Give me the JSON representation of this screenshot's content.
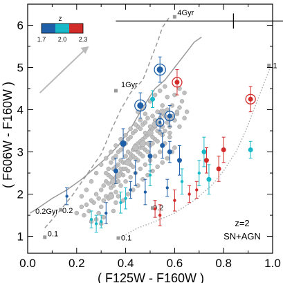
{
  "chart_data": {
    "type": "scatter",
    "xlabel": "( F125W - F160W )",
    "ylabel": "( F606W - F160W )",
    "xlim": [
      0.0,
      1.0
    ],
    "ylim": [
      0.6,
      6.5
    ],
    "x_ticks": [
      "0.0",
      "0.2",
      "0.4",
      "0.6",
      "0.8",
      "1.0"
    ],
    "x_tick_values": [
      0.0,
      0.2,
      0.4,
      0.6,
      0.8,
      1.0
    ],
    "y_ticks": [
      "1",
      "2",
      "3",
      "4",
      "5",
      "6"
    ],
    "y_tick_values": [
      1,
      2,
      3,
      4,
      5,
      6
    ],
    "annotation": [
      "z=2",
      "SN+AGN"
    ],
    "colorbar": {
      "title": "z",
      "tick_labels": [
        "1.7",
        "2.0",
        "2.3"
      ],
      "tick_values": [
        1.7,
        2.0,
        2.3
      ],
      "colors": [
        "#1f5fa8",
        "#17b8c8",
        "#d32a2a"
      ]
    },
    "colors": {
      "grey_points": "#c0c0c0",
      "track_dark": "#999999",
      "track_light": "#aaaaaa",
      "arrow": "#bbbbbb",
      "marker_square": "#999999"
    },
    "tracks": [
      {
        "style": "solid",
        "points": [
          [
            0.01,
            1.55
          ],
          [
            0.05,
            1.7
          ],
          [
            0.1,
            1.9
          ],
          [
            0.16,
            2.1
          ],
          [
            0.22,
            2.35
          ],
          [
            0.27,
            2.6
          ],
          [
            0.32,
            2.85
          ],
          [
            0.37,
            3.15
          ],
          [
            0.42,
            3.55
          ],
          [
            0.47,
            4.05
          ],
          [
            0.52,
            4.5
          ],
          [
            0.56,
            4.7
          ],
          [
            0.6,
            5.0
          ],
          [
            0.64,
            5.3
          ],
          [
            0.68,
            5.6
          ],
          [
            0.71,
            5.72
          ]
        ],
        "labels": [
          {
            "text": "0.2Gyr",
            "x": 0.02,
            "y": 1.6
          },
          {
            "text": "4Gyr",
            "x": 0.6,
            "y": 6.3
          }
        ]
      },
      {
        "style": "dashed",
        "points": [
          [
            0.07,
            1.2
          ],
          [
            0.13,
            1.6
          ],
          [
            0.18,
            1.95
          ],
          [
            0.24,
            2.45
          ],
          [
            0.3,
            2.95
          ],
          [
            0.34,
            3.5
          ],
          [
            0.38,
            4.0
          ],
          [
            0.42,
            4.4
          ],
          [
            0.47,
            4.7
          ],
          [
            0.5,
            5.15
          ],
          [
            0.53,
            5.6
          ],
          [
            0.55,
            5.95
          ],
          [
            0.58,
            6.2
          ]
        ],
        "labels": [
          {
            "text": "0.2",
            "x": 0.13,
            "y": 1.62
          },
          {
            "text": "1Gyr",
            "x": 0.37,
            "y": 4.6
          }
        ]
      },
      {
        "style": "dotted",
        "points": [
          [
            0.37,
            0.95
          ],
          [
            0.45,
            1.2
          ],
          [
            0.52,
            1.35
          ],
          [
            0.6,
            1.55
          ],
          [
            0.68,
            1.85
          ],
          [
            0.75,
            2.2
          ],
          [
            0.8,
            2.55
          ],
          [
            0.85,
            3.0
          ],
          [
            0.89,
            3.5
          ],
          [
            0.93,
            4.1
          ],
          [
            0.96,
            4.55
          ],
          [
            0.99,
            5.0
          ]
        ],
        "labels": [
          {
            "text": "0.1",
            "x": 0.37,
            "y": 0.97
          },
          {
            "text": "0.2",
            "x": 0.5,
            "y": 1.68
          },
          {
            "text": "1",
            "x": 0.99,
            "y": 5.05
          }
        ]
      }
    ],
    "track_extra_label": {
      "text": "0.1",
      "x": 0.07,
      "y": 1.07
    },
    "square_markers": [
      [
        0.07,
        0.98
      ],
      [
        0.135,
        1.63
      ],
      [
        0.37,
        0.96
      ],
      [
        0.51,
        1.67
      ],
      [
        0.36,
        4.45
      ],
      [
        0.6,
        6.2
      ],
      [
        0.985,
        5.05
      ]
    ],
    "error_bar_example": {
      "x": 0.84,
      "y": 6.1,
      "xerr": 0.12,
      "yerr": 0.18
    },
    "grey_points": [
      [
        0.3,
        2.1
      ],
      [
        0.32,
        2.3
      ],
      [
        0.33,
        2.45
      ],
      [
        0.35,
        2.6
      ],
      [
        0.36,
        2.55
      ],
      [
        0.37,
        2.7
      ],
      [
        0.38,
        2.8
      ],
      [
        0.39,
        2.75
      ],
      [
        0.4,
        2.9
      ],
      [
        0.41,
        3.0
      ],
      [
        0.42,
        2.95
      ],
      [
        0.43,
        3.05
      ],
      [
        0.44,
        3.15
      ],
      [
        0.45,
        3.2
      ],
      [
        0.46,
        3.1
      ],
      [
        0.47,
        3.3
      ],
      [
        0.48,
        3.35
      ],
      [
        0.49,
        3.4
      ],
      [
        0.5,
        3.5
      ],
      [
        0.51,
        3.55
      ],
      [
        0.52,
        3.6
      ],
      [
        0.53,
        3.7
      ],
      [
        0.54,
        3.8
      ],
      [
        0.55,
        3.9
      ],
      [
        0.56,
        3.85
      ],
      [
        0.57,
        4.0
      ],
      [
        0.28,
        2.0
      ],
      [
        0.29,
        1.9
      ],
      [
        0.31,
        2.2
      ],
      [
        0.32,
        1.95
      ],
      [
        0.33,
        2.25
      ],
      [
        0.34,
        2.15
      ],
      [
        0.35,
        2.35
      ],
      [
        0.36,
        2.4
      ],
      [
        0.37,
        2.3
      ],
      [
        0.38,
        2.5
      ],
      [
        0.39,
        2.45
      ],
      [
        0.4,
        2.6
      ],
      [
        0.41,
        2.55
      ],
      [
        0.42,
        2.7
      ],
      [
        0.43,
        2.65
      ],
      [
        0.44,
        2.85
      ],
      [
        0.45,
        2.8
      ],
      [
        0.46,
        2.95
      ],
      [
        0.47,
        2.9
      ],
      [
        0.48,
        3.05
      ],
      [
        0.49,
        3.0
      ],
      [
        0.5,
        3.15
      ],
      [
        0.51,
        3.2
      ],
      [
        0.52,
        3.3
      ],
      [
        0.53,
        3.25
      ],
      [
        0.54,
        3.45
      ],
      [
        0.55,
        3.4
      ],
      [
        0.33,
        2.6
      ],
      [
        0.34,
        2.75
      ],
      [
        0.35,
        2.85
      ],
      [
        0.36,
        2.9
      ],
      [
        0.37,
        3.0
      ],
      [
        0.38,
        3.05
      ],
      [
        0.39,
        3.15
      ],
      [
        0.4,
        3.2
      ],
      [
        0.41,
        3.3
      ],
      [
        0.42,
        3.35
      ],
      [
        0.43,
        3.45
      ],
      [
        0.44,
        3.5
      ],
      [
        0.45,
        3.6
      ],
      [
        0.46,
        3.55
      ],
      [
        0.47,
        3.65
      ],
      [
        0.48,
        3.7
      ],
      [
        0.49,
        3.8
      ],
      [
        0.27,
        1.8
      ],
      [
        0.3,
        1.7
      ],
      [
        0.31,
        1.85
      ],
      [
        0.33,
        1.9
      ],
      [
        0.34,
        2.0
      ],
      [
        0.36,
        2.05
      ],
      [
        0.38,
        2.2
      ],
      [
        0.4,
        2.3
      ],
      [
        0.42,
        2.4
      ],
      [
        0.44,
        2.5
      ],
      [
        0.46,
        2.6
      ],
      [
        0.48,
        2.7
      ],
      [
        0.5,
        2.8
      ],
      [
        0.52,
        2.9
      ],
      [
        0.54,
        3.0
      ],
      [
        0.56,
        3.2
      ],
      [
        0.58,
        3.35
      ],
      [
        0.22,
        1.7
      ],
      [
        0.24,
        1.75
      ],
      [
        0.25,
        1.6
      ],
      [
        0.26,
        1.85
      ],
      [
        0.2,
        1.55
      ],
      [
        0.23,
        1.5
      ],
      [
        0.29,
        1.55
      ],
      [
        0.31,
        1.45
      ],
      [
        0.28,
        1.4
      ],
      [
        0.26,
        1.35
      ],
      [
        0.3,
        1.3
      ],
      [
        0.35,
        1.6
      ],
      [
        0.36,
        1.8
      ],
      [
        0.37,
        1.95
      ],
      [
        0.39,
        1.85
      ],
      [
        0.41,
        2.0
      ],
      [
        0.43,
        2.1
      ],
      [
        0.45,
        2.2
      ],
      [
        0.47,
        2.35
      ],
      [
        0.49,
        2.45
      ],
      [
        0.51,
        2.55
      ],
      [
        0.53,
        2.65
      ],
      [
        0.55,
        2.75
      ],
      [
        0.57,
        2.85
      ],
      [
        0.59,
        3.0
      ],
      [
        0.6,
        3.1
      ],
      [
        0.58,
        3.6
      ],
      [
        0.6,
        3.75
      ],
      [
        0.61,
        3.9
      ],
      [
        0.59,
        4.1
      ],
      [
        0.57,
        4.3
      ],
      [
        0.55,
        4.1
      ],
      [
        0.53,
        3.95
      ],
      [
        0.51,
        3.85
      ],
      [
        0.45,
        3.95
      ],
      [
        0.47,
        4.05
      ],
      [
        0.5,
        4.2
      ],
      [
        0.52,
        4.35
      ],
      [
        0.54,
        4.45
      ],
      [
        0.56,
        4.55
      ],
      [
        0.48,
        3.9
      ],
      [
        0.46,
        3.75
      ],
      [
        0.44,
        3.65
      ],
      [
        0.42,
        3.55
      ],
      [
        0.4,
        3.4
      ],
      [
        0.38,
        3.3
      ],
      [
        0.36,
        3.15
      ],
      [
        0.34,
        3.0
      ],
      [
        0.32,
        2.85
      ],
      [
        0.3,
        2.7
      ],
      [
        0.28,
        2.5
      ],
      [
        0.26,
        2.3
      ],
      [
        0.24,
        2.1
      ],
      [
        0.22,
        1.95
      ],
      [
        0.35,
        2.2
      ],
      [
        0.37,
        2.45
      ],
      [
        0.39,
        2.6
      ],
      [
        0.41,
        2.8
      ],
      [
        0.43,
        2.9
      ],
      [
        0.45,
        3.0
      ],
      [
        0.47,
        3.1
      ],
      [
        0.49,
        3.2
      ],
      [
        0.51,
        3.35
      ],
      [
        0.53,
        3.5
      ],
      [
        0.55,
        3.6
      ],
      [
        0.57,
        3.7
      ],
      [
        0.59,
        3.85
      ],
      [
        0.61,
        3.95
      ],
      [
        0.32,
        2.5
      ],
      [
        0.34,
        2.4
      ],
      [
        0.36,
        2.65
      ],
      [
        0.38,
        2.6
      ],
      [
        0.4,
        2.75
      ],
      [
        0.42,
        2.85
      ],
      [
        0.44,
        3.05
      ],
      [
        0.46,
        3.25
      ],
      [
        0.48,
        3.45
      ],
      [
        0.5,
        3.6
      ],
      [
        0.52,
        3.75
      ],
      [
        0.54,
        3.65
      ],
      [
        0.56,
        3.5
      ],
      [
        0.58,
        3.45
      ],
      [
        0.62,
        4.05
      ],
      [
        0.63,
        4.2
      ],
      [
        0.6,
        4.35
      ],
      [
        0.62,
        4.5
      ],
      [
        0.64,
        4.4
      ],
      [
        0.62,
        3.6
      ],
      [
        0.64,
        3.8
      ],
      [
        0.65,
        3.95
      ]
    ],
    "grey_points_large": [
      [
        0.44,
        3.1
      ],
      [
        0.5,
        3.45
      ],
      [
        0.55,
        3.95
      ],
      [
        0.41,
        2.75
      ],
      [
        0.37,
        2.45
      ],
      [
        0.35,
        2.3
      ],
      [
        0.47,
        3.2
      ],
      [
        0.52,
        3.65
      ],
      [
        0.58,
        3.8
      ],
      [
        0.34,
        1.95
      ]
    ],
    "colored_points": [
      {
        "x": 0.26,
        "y": 1.4,
        "z": 2.0,
        "yerr": 0.2,
        "ring": false,
        "size": "s"
      },
      {
        "x": 0.3,
        "y": 1.35,
        "z": 2.0,
        "yerr": 0.15,
        "ring": false,
        "size": "s"
      },
      {
        "x": 0.38,
        "y": 1.8,
        "z": 2.0,
        "yerr": 0.25,
        "ring": false,
        "size": "s"
      },
      {
        "x": 0.42,
        "y": 2.1,
        "z": 1.7,
        "yerr": 0.2,
        "ring": false,
        "size": "s"
      },
      {
        "x": 0.48,
        "y": 2.05,
        "z": 1.7,
        "yerr": 0.3,
        "ring": false,
        "size": "s"
      },
      {
        "x": 0.52,
        "y": 1.65,
        "z": 2.3,
        "yerr": 0.2,
        "ring": false,
        "size": "s"
      },
      {
        "x": 0.54,
        "y": 1.5,
        "z": 2.3,
        "yerr": 0.25,
        "ring": false,
        "size": "s"
      },
      {
        "x": 0.57,
        "y": 2.15,
        "z": 1.7,
        "yerr": 0.2,
        "ring": false,
        "size": "s"
      },
      {
        "x": 0.6,
        "y": 1.85,
        "z": 2.3,
        "yerr": 0.25,
        "ring": false,
        "size": "s"
      },
      {
        "x": 0.63,
        "y": 2.3,
        "z": 2.0,
        "yerr": 0.3,
        "ring": false,
        "size": "s"
      },
      {
        "x": 0.66,
        "y": 2.0,
        "z": 2.3,
        "yerr": 0.2,
        "ring": false,
        "size": "s"
      },
      {
        "x": 0.69,
        "y": 2.1,
        "z": 2.3,
        "yerr": 0.2,
        "ring": false,
        "size": "s"
      },
      {
        "x": 0.7,
        "y": 2.5,
        "z": 2.0,
        "yerr": 0.3,
        "ring": false,
        "size": "s"
      },
      {
        "x": 0.72,
        "y": 3.0,
        "z": 2.0,
        "yerr": 0.35,
        "ring": false,
        "size": "m"
      },
      {
        "x": 0.74,
        "y": 2.35,
        "z": 2.0,
        "yerr": 0.35,
        "ring": false,
        "size": "m"
      },
      {
        "x": 0.73,
        "y": 2.8,
        "z": 2.3,
        "yerr": 0.3,
        "ring": false,
        "size": "m"
      },
      {
        "x": 0.78,
        "y": 2.6,
        "z": 2.3,
        "yerr": 0.3,
        "ring": false,
        "size": "m"
      },
      {
        "x": 0.8,
        "y": 3.05,
        "z": 2.3,
        "yerr": 0.3,
        "ring": false,
        "size": "m"
      },
      {
        "x": 0.91,
        "y": 3.05,
        "z": 2.0,
        "yerr": 0.2,
        "ring": false,
        "size": "m"
      },
      {
        "x": 0.16,
        "y": 1.95,
        "z": 1.7,
        "yerr": 0.2,
        "ring": false,
        "size": "s"
      },
      {
        "x": 0.28,
        "y": 1.3,
        "z": 2.0,
        "yerr": 0.2,
        "ring": false,
        "size": "s"
      },
      {
        "x": 0.32,
        "y": 1.55,
        "z": 1.7,
        "yerr": 0.25,
        "ring": false,
        "size": "s"
      },
      {
        "x": 0.36,
        "y": 2.55,
        "z": 1.7,
        "yerr": 0.3,
        "ring": false,
        "size": "m"
      },
      {
        "x": 0.39,
        "y": 3.2,
        "z": 1.7,
        "yerr": 0.35,
        "ring": false,
        "size": "l"
      },
      {
        "x": 0.44,
        "y": 2.5,
        "z": 1.7,
        "yerr": 0.3,
        "ring": false,
        "size": "s"
      },
      {
        "x": 0.5,
        "y": 2.9,
        "z": 1.7,
        "yerr": 0.35,
        "ring": false,
        "size": "m"
      },
      {
        "x": 0.55,
        "y": 3.15,
        "z": 1.7,
        "yerr": 0.3,
        "ring": false,
        "size": "m"
      },
      {
        "x": 0.58,
        "y": 3.0,
        "z": 1.7,
        "yerr": 0.25,
        "ring": false,
        "size": "m"
      },
      {
        "x": 0.62,
        "y": 2.8,
        "z": 1.7,
        "yerr": 0.35,
        "ring": false,
        "size": "m"
      },
      {
        "x": 0.5,
        "y": 2.45,
        "z": 2.0,
        "yerr": 0.25,
        "ring": false,
        "size": "s"
      },
      {
        "x": 0.4,
        "y": 1.9,
        "z": 2.0,
        "yerr": 0.25,
        "ring": false,
        "size": "s"
      },
      {
        "x": 0.54,
        "y": 4.95,
        "z": 1.7,
        "yerr": 0.3,
        "ring": true,
        "size": "l"
      },
      {
        "x": 0.46,
        "y": 4.1,
        "z": 1.7,
        "yerr": 0.3,
        "ring": true,
        "size": "l"
      },
      {
        "x": 0.58,
        "y": 3.85,
        "z": 1.7,
        "yerr": 0.25,
        "ring": true,
        "size": "m"
      },
      {
        "x": 0.54,
        "y": 3.7,
        "z": 1.7,
        "yerr": 0.2,
        "ring": true,
        "size": "s"
      },
      {
        "x": 0.51,
        "y": 4.25,
        "z": 2.0,
        "yerr": 0.2,
        "ring": false,
        "size": "m"
      },
      {
        "x": 0.61,
        "y": 4.65,
        "z": 2.3,
        "yerr": 0.3,
        "ring": true,
        "size": "m"
      },
      {
        "x": 0.91,
        "y": 4.25,
        "z": 2.3,
        "yerr": 0.3,
        "ring": true,
        "size": "m"
      }
    ]
  }
}
